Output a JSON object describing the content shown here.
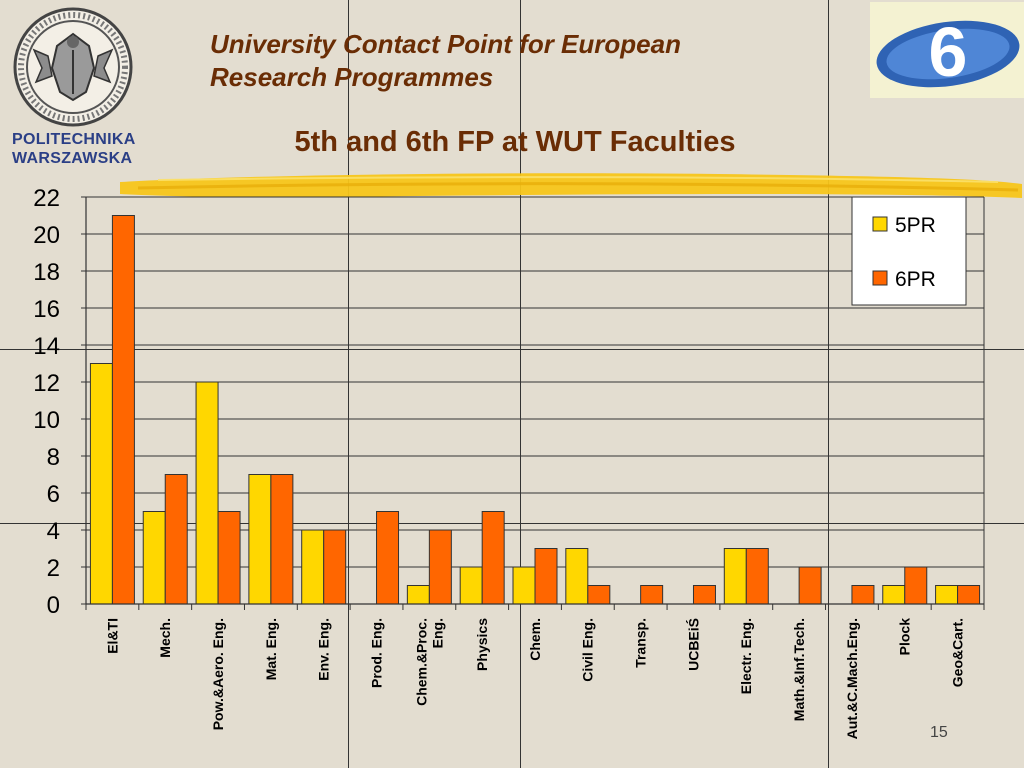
{
  "header": {
    "title_line1": "University Contact Point for European",
    "title_line2": "Research Programmes"
  },
  "logo": {
    "text_line1": "POLITECHNIKA",
    "text_line2": "WARSZAWSKA",
    "badge_label": "6"
  },
  "page_number": "15",
  "colors": {
    "series_5pr": "#ffd700",
    "series_6pr": "#ff6600",
    "title": "#6a2d05",
    "highlighter": "#f7c51a",
    "logo_blue": "#2b3f86"
  },
  "chart_data": {
    "type": "bar",
    "title": "5th and 6th FP at WUT Faculties",
    "xlabel": "",
    "ylabel": "",
    "ylim": [
      0,
      22
    ],
    "yticks": [
      0,
      2,
      4,
      6,
      8,
      10,
      12,
      14,
      16,
      18,
      20,
      22
    ],
    "grid": true,
    "legend_position": "top-right",
    "categories": [
      "El&TI",
      "Mech.",
      "Pow.&Aero. Eng.",
      "Mat. Eng.",
      "Env. Eng.",
      "Prod. Eng.",
      "Chem.&Proc. Eng.",
      "Physics",
      "Chem.",
      "Civil Eng.",
      "Transp.",
      "UCBEiŚ",
      "Electr. Eng.",
      "Math.&Inf.Tech.",
      "Aut.&C.Mach.Eng.",
      "Plock",
      "Geo&Cart."
    ],
    "series": [
      {
        "name": "5PR",
        "values": [
          13,
          5,
          12,
          7,
          4,
          0,
          1,
          2,
          2,
          3,
          0,
          0,
          3,
          0,
          0,
          1,
          1
        ]
      },
      {
        "name": "6PR",
        "values": [
          21,
          7,
          5,
          7,
          4,
          5,
          4,
          5,
          3,
          1,
          1,
          1,
          3,
          2,
          1,
          2,
          1
        ]
      }
    ]
  }
}
